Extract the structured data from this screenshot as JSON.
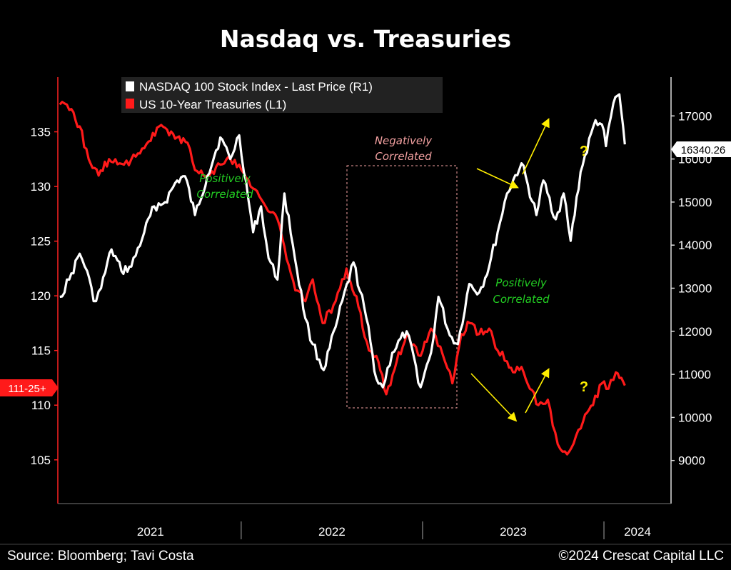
{
  "chart_data": {
    "type": "line",
    "title": "Nasdaq vs. Treasuries",
    "x_ticks": [
      "2021",
      "2022",
      "2023",
      "2024"
    ],
    "left_axis": {
      "ticks": [
        105,
        110,
        115,
        120,
        125,
        130,
        135
      ],
      "ylim": [
        101,
        140
      ]
    },
    "right_axis": {
      "ticks": [
        9000,
        10000,
        11000,
        12000,
        13000,
        14000,
        15000,
        16000,
        17000
      ],
      "ylim": [
        8000,
        17900
      ]
    },
    "series": [
      {
        "name": "NASDAQ 100 Stock Index - Last Price (R1)",
        "axis": "right",
        "color": "#ffffff",
        "last_value_label": "16340.26",
        "points": [
          [
            "2021-01-01",
            12800
          ],
          [
            "2021-01-20",
            13200
          ],
          [
            "2021-02-10",
            13800
          ],
          [
            "2021-02-25",
            13400
          ],
          [
            "2021-03-10",
            12700
          ],
          [
            "2021-03-25",
            13000
          ],
          [
            "2021-04-15",
            13900
          ],
          [
            "2021-05-05",
            13400
          ],
          [
            "2021-05-25",
            13500
          ],
          [
            "2021-06-20",
            14300
          ],
          [
            "2021-07-10",
            14900
          ],
          [
            "2021-08-01",
            15000
          ],
          [
            "2021-08-25",
            15500
          ],
          [
            "2021-09-10",
            15600
          ],
          [
            "2021-09-30",
            14700
          ],
          [
            "2021-10-25",
            15600
          ],
          [
            "2021-11-20",
            16500
          ],
          [
            "2021-12-10",
            16000
          ],
          [
            "2021-12-28",
            16550
          ],
          [
            "2022-01-25",
            14300
          ],
          [
            "2022-02-10",
            14900
          ],
          [
            "2022-02-25",
            13700
          ],
          [
            "2022-03-15",
            13200
          ],
          [
            "2022-03-29",
            15200
          ],
          [
            "2022-04-15",
            14000
          ],
          [
            "2022-05-10",
            12300
          ],
          [
            "2022-05-25",
            11700
          ],
          [
            "2022-06-16",
            11100
          ],
          [
            "2022-07-10",
            12100
          ],
          [
            "2022-08-15",
            13600
          ],
          [
            "2022-09-10",
            12300
          ],
          [
            "2022-09-30",
            10900
          ],
          [
            "2022-10-13",
            10700
          ],
          [
            "2022-11-01",
            11500
          ],
          [
            "2022-11-30",
            12000
          ],
          [
            "2022-12-28",
            10700
          ],
          [
            "2023-01-18",
            11500
          ],
          [
            "2023-02-02",
            12800
          ],
          [
            "2023-02-25",
            11900
          ],
          [
            "2023-03-13",
            11700
          ],
          [
            "2023-04-05",
            13100
          ],
          [
            "2023-04-25",
            12900
          ],
          [
            "2023-05-15",
            13500
          ],
          [
            "2023-06-01",
            14300
          ],
          [
            "2023-06-20",
            15200
          ],
          [
            "2023-07-19",
            15900
          ],
          [
            "2023-08-18",
            14700
          ],
          [
            "2023-09-01",
            15500
          ],
          [
            "2023-09-26",
            14600
          ],
          [
            "2023-10-12",
            15200
          ],
          [
            "2023-10-26",
            14100
          ],
          [
            "2023-11-15",
            15700
          ],
          [
            "2023-12-15",
            16900
          ],
          [
            "2023-12-28",
            16800
          ],
          [
            "2024-01-05",
            16300
          ],
          [
            "2024-01-20",
            17300
          ],
          [
            "2024-02-01",
            17500
          ],
          [
            "2024-02-12",
            16340
          ]
        ]
      },
      {
        "name": "US 10-Year Treasuries (L1)",
        "axis": "left",
        "color": "#ff1a1a",
        "last_value_label": "111-25+",
        "points": [
          [
            "2021-01-01",
            137.5
          ],
          [
            "2021-01-20",
            137.0
          ],
          [
            "2021-02-10",
            135.5
          ],
          [
            "2021-02-28",
            132.5
          ],
          [
            "2021-03-20",
            131.0
          ],
          [
            "2021-04-10",
            132.5
          ],
          [
            "2021-05-10",
            132.0
          ],
          [
            "2021-05-25",
            132.5
          ],
          [
            "2021-06-20",
            133.5
          ],
          [
            "2021-07-20",
            135.5
          ],
          [
            "2021-08-05",
            135.2
          ],
          [
            "2021-08-25",
            134.5
          ],
          [
            "2021-09-15",
            134.0
          ],
          [
            "2021-09-30",
            131.5
          ],
          [
            "2021-10-25",
            131.0
          ],
          [
            "2021-11-20",
            132.0
          ],
          [
            "2021-12-10",
            132.5
          ],
          [
            "2021-12-28",
            132.0
          ],
          [
            "2022-01-20",
            130.0
          ],
          [
            "2022-02-15",
            128.5
          ],
          [
            "2022-03-15",
            127.0
          ],
          [
            "2022-03-29",
            124.5
          ],
          [
            "2022-04-20",
            120.5
          ],
          [
            "2022-05-10",
            119.5
          ],
          [
            "2022-05-25",
            121.5
          ],
          [
            "2022-06-14",
            117.5
          ],
          [
            "2022-07-10",
            119.5
          ],
          [
            "2022-08-01",
            122.5
          ],
          [
            "2022-08-25",
            119.0
          ],
          [
            "2022-09-15",
            115.0
          ],
          [
            "2022-09-30",
            114.5
          ],
          [
            "2022-10-20",
            111.0
          ],
          [
            "2022-11-10",
            114.0
          ],
          [
            "2022-11-30",
            116.5
          ],
          [
            "2022-12-28",
            114.5
          ],
          [
            "2023-01-18",
            117.0
          ],
          [
            "2023-02-15",
            114.0
          ],
          [
            "2023-03-02",
            112.0
          ],
          [
            "2023-03-20",
            116.5
          ],
          [
            "2023-04-06",
            117.5
          ],
          [
            "2023-04-25",
            116.5
          ],
          [
            "2023-05-15",
            117.0
          ],
          [
            "2023-06-01",
            115.0
          ],
          [
            "2023-06-20",
            114.0
          ],
          [
            "2023-07-06",
            113.0
          ],
          [
            "2023-07-19",
            113.5
          ],
          [
            "2023-08-05",
            111.5
          ],
          [
            "2023-08-22",
            110.0
          ],
          [
            "2023-09-10",
            110.5
          ],
          [
            "2023-09-25",
            107.5
          ],
          [
            "2023-10-05",
            106.0
          ],
          [
            "2023-10-19",
            105.5
          ],
          [
            "2023-11-01",
            106.5
          ],
          [
            "2023-11-20",
            108.5
          ],
          [
            "2023-12-10",
            110.0
          ],
          [
            "2023-12-28",
            112.0
          ],
          [
            "2024-01-10",
            111.5
          ],
          [
            "2024-01-25",
            113.0
          ],
          [
            "2024-02-05",
            112.5
          ],
          [
            "2024-02-12",
            111.8
          ]
        ]
      }
    ],
    "annotations": {
      "negatively_correlated": "Negatively\nCorrelated",
      "positively_correlated_left": "Positively\nCorrelated",
      "positively_correlated_right": "Positively\nCorrelated",
      "question_mark": "?"
    },
    "legend_placement": "top-center",
    "grid": false
  },
  "footer": {
    "source": "Source: Bloomberg; Tavi Costa",
    "copyright": "©2024 Crescat Capital LLC"
  },
  "colors": {
    "background": "#000000",
    "nasdaq": "#ffffff",
    "treasuries": "#ff1a1a",
    "positive_annotation": "#22cc22",
    "negative_annotation": "#f2a0a0",
    "arrow": "#ffee00",
    "axis": "#ff2222",
    "right_axis": "#dddddd"
  }
}
